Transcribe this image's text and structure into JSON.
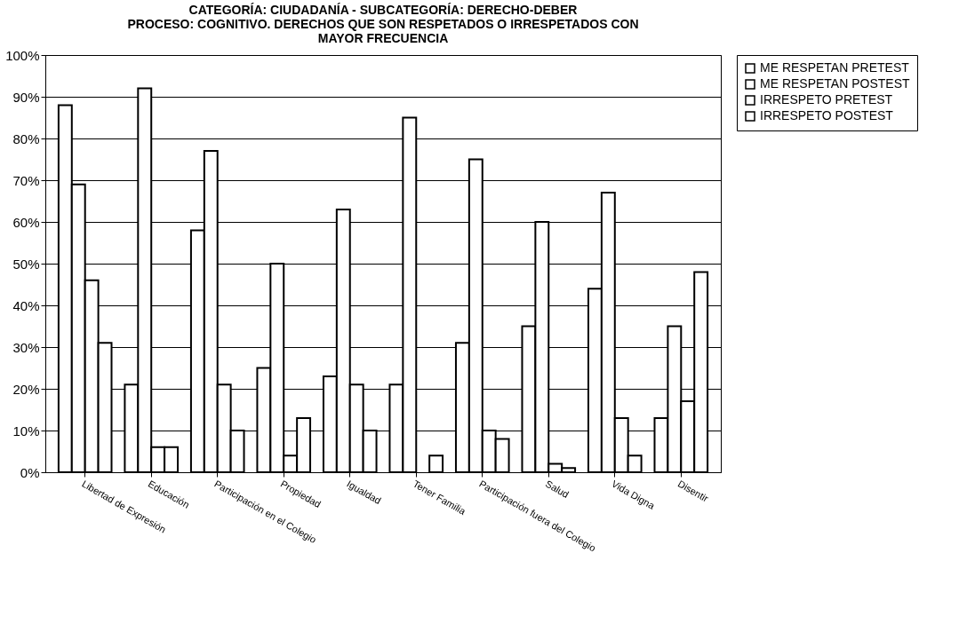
{
  "chart_data": {
    "type": "bar",
    "title": [
      "CATEGORÍA: CIUDADANÍA - SUBCATEGORÍA: DERECHO-DEBER",
      "PROCESO: COGNITIVO. DERECHOS QUE SON RESPETADOS  O IRRESPETADOS CON",
      "MAYOR FRECUENCIA"
    ],
    "categories": [
      "Libertad de Expresión",
      "Educación",
      "Participación en el Colegio",
      "Propiedad",
      "Igualdad",
      "Tener Familia",
      "Participación fuera del Colegio",
      "Salud",
      "Vida Digna",
      "Disentir"
    ],
    "series": [
      {
        "name": "ME RESPETAN PRETEST",
        "color": "#ffffff",
        "values": [
          88,
          21,
          58,
          25,
          23,
          21,
          31,
          35,
          44,
          13
        ]
      },
      {
        "name": "ME RESPETAN POSTEST",
        "color": "#ffffff",
        "values": [
          69,
          92,
          77,
          50,
          63,
          85,
          75,
          60,
          67,
          35
        ]
      },
      {
        "name": "IRRESPETO PRETEST",
        "color": "#ffffff",
        "values": [
          46,
          6,
          21,
          4,
          21,
          null,
          10,
          2,
          13,
          17
        ]
      },
      {
        "name": "IRRESPETO POSTEST",
        "color": "#ffffff",
        "values": [
          31,
          6,
          10,
          13,
          10,
          4,
          8,
          1,
          4,
          48
        ]
      }
    ],
    "ylim": [
      0,
      100
    ],
    "yticks": [
      {
        "value": 0,
        "label": "0%"
      },
      {
        "value": 10,
        "label": "10%"
      },
      {
        "value": 20,
        "label": "20%"
      },
      {
        "value": 30,
        "label": "30%"
      },
      {
        "value": 40,
        "label": "40%"
      },
      {
        "value": 50,
        "label": "50%"
      },
      {
        "value": 60,
        "label": "60%"
      },
      {
        "value": 70,
        "label": "70%"
      },
      {
        "value": 80,
        "label": "80%"
      },
      {
        "value": 90,
        "label": "90%"
      },
      {
        "value": 100,
        "label": "100%"
      }
    ],
    "grid": "y",
    "legend": "right"
  }
}
